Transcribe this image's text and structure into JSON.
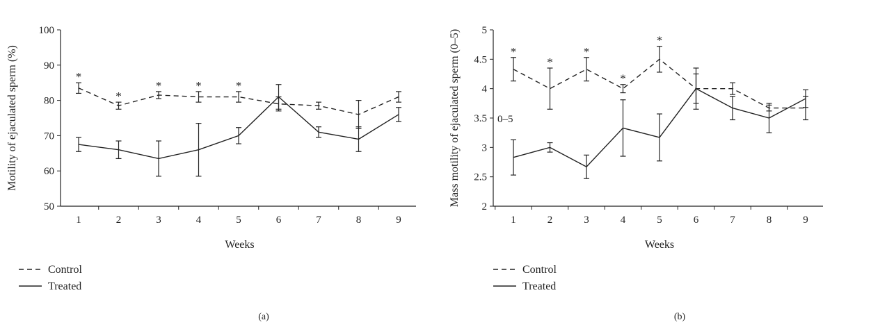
{
  "chart_data": [
    {
      "type": "line",
      "panel_label": "(a)",
      "xlabel": "Weeks",
      "ylabel": "Motility of ejaculated sperm (%)",
      "categories": [
        1,
        2,
        3,
        4,
        5,
        6,
        7,
        8,
        9
      ],
      "ylim": [
        50,
        100
      ],
      "yticks": [
        50,
        60,
        70,
        80,
        90,
        100
      ],
      "grid": false,
      "legend_position": "bottom-left",
      "series": [
        {
          "name": "Control",
          "line_style": "dashed",
          "values": [
            83.5,
            78.5,
            81.5,
            81,
            81,
            79,
            78.5,
            76,
            81
          ],
          "error": [
            1.5,
            1,
            1,
            1.5,
            1.5,
            2,
            1,
            4,
            1.5
          ],
          "significant": [
            true,
            true,
            true,
            true,
            true,
            false,
            false,
            false,
            false
          ]
        },
        {
          "name": "Treated",
          "line_style": "solid",
          "values": [
            67.5,
            66,
            63.5,
            66,
            70,
            81,
            71,
            69,
            76
          ],
          "error": [
            2,
            2.5,
            5,
            7.5,
            2.3,
            3.5,
            1.5,
            3.5,
            2
          ]
        }
      ],
      "significance_marker": "*"
    },
    {
      "type": "line",
      "panel_label": "(b)",
      "xlabel": "Weeks",
      "ylabel": "Mass motility of ejaculated sperm (0–5)",
      "annotation": "0–5",
      "categories": [
        1,
        2,
        3,
        4,
        5,
        6,
        7,
        8,
        9
      ],
      "ylim": [
        2,
        5
      ],
      "yticks": [
        "2",
        "2.5",
        "3",
        "3.5",
        "4",
        "4.5",
        "5"
      ],
      "grid": false,
      "legend_position": "bottom-left",
      "series": [
        {
          "name": "Control",
          "line_style": "dashed",
          "values": [
            4.33,
            4,
            4.33,
            4,
            4.5,
            4,
            4,
            3.67,
            3.67
          ],
          "error": [
            0.2,
            0.35,
            0.2,
            0.07,
            0.22,
            0.35,
            0.1,
            0.05,
            0.2
          ],
          "significant": [
            true,
            true,
            true,
            true,
            true,
            false,
            false,
            false,
            false
          ]
        },
        {
          "name": "Treated",
          "line_style": "solid",
          "values": [
            2.83,
            3,
            2.67,
            3.33,
            3.17,
            4,
            3.67,
            3.5,
            3.83
          ],
          "error": [
            0.3,
            0.08,
            0.2,
            0.48,
            0.4,
            0.25,
            0.2,
            0.25,
            0.15
          ]
        }
      ],
      "significance_marker": "*"
    }
  ]
}
